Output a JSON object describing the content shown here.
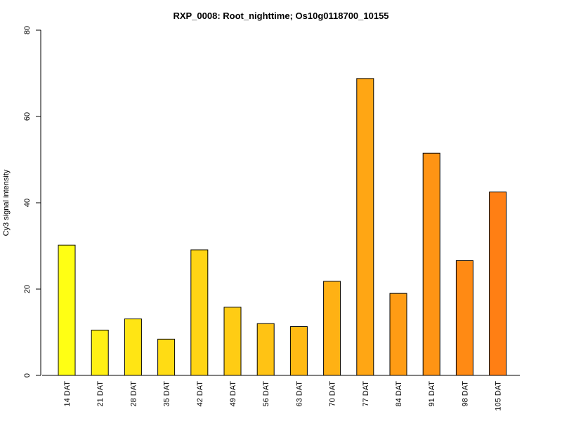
{
  "chart_data": {
    "type": "bar",
    "title": "RXP_0008: Root_nighttime; Os10g0118700_10155",
    "xlabel": "",
    "ylabel": "Cy3 signal intensity",
    "ylim": [
      0,
      80
    ],
    "yticks": [
      0,
      20,
      40,
      60,
      80
    ],
    "grid": false,
    "categories": [
      "14 DAT",
      "21 DAT",
      "28 DAT",
      "35 DAT",
      "42 DAT",
      "49 DAT",
      "56 DAT",
      "63 DAT",
      "70 DAT",
      "77 DAT",
      "84 DAT",
      "91 DAT",
      "98 DAT",
      "105 DAT"
    ],
    "values": [
      30.2,
      10.5,
      13.1,
      8.4,
      29.1,
      15.8,
      12.0,
      11.3,
      21.8,
      68.8,
      19.0,
      51.5,
      26.6,
      42.5
    ],
    "colors": [
      "#ffff14",
      "#fff014",
      "#ffe514",
      "#ffdc14",
      "#ffd514",
      "#ffcc14",
      "#ffc314",
      "#ffba14",
      "#ffb114",
      "#ffa614",
      "#ff9c14",
      "#ff9414",
      "#ff8a14",
      "#ff7f14"
    ]
  }
}
